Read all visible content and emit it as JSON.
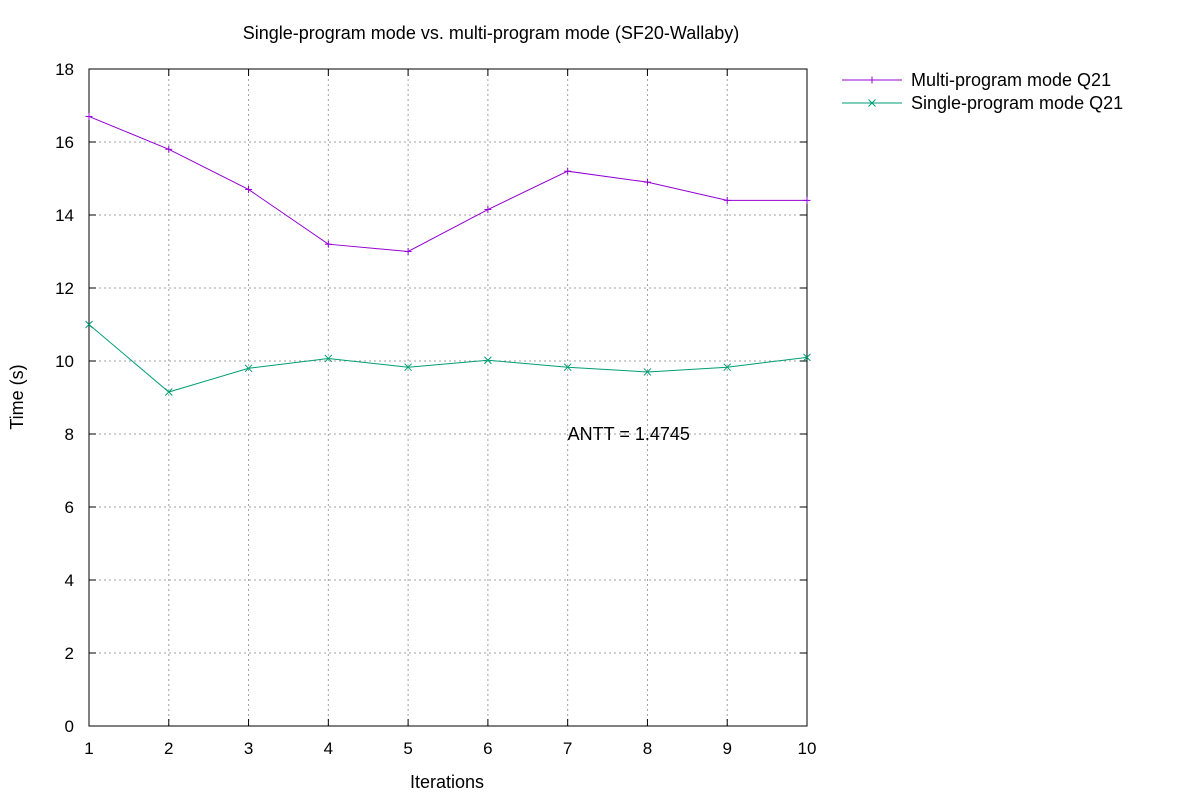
{
  "chart_data": {
    "type": "line",
    "title": "Single-program mode vs. multi-program mode (SF20-Wallaby)",
    "xlabel": "Iterations",
    "ylabel": "Time (s)",
    "xlim": [
      1,
      10
    ],
    "ylim": [
      0,
      18
    ],
    "x_ticks": [
      "1",
      "2",
      "3",
      "4",
      "5",
      "6",
      "7",
      "8",
      "9",
      "10"
    ],
    "y_ticks": [
      "0",
      "2",
      "4",
      "6",
      "8",
      "10",
      "12",
      "14",
      "16",
      "18"
    ],
    "grid": true,
    "legend_position": "outside-top-right",
    "x": [
      1,
      2,
      3,
      4,
      5,
      6,
      7,
      8,
      9,
      10
    ],
    "series": [
      {
        "name": "Multi-program mode Q21",
        "color": "#9400d3",
        "marker": "plus",
        "values": [
          16.7,
          15.8,
          14.7,
          13.2,
          13.0,
          14.15,
          15.2,
          14.9,
          14.4,
          14.4
        ]
      },
      {
        "name": "Single-program mode Q21",
        "color": "#009e73",
        "marker": "cross",
        "values": [
          11.0,
          9.15,
          9.8,
          10.07,
          9.83,
          10.02,
          9.83,
          9.7,
          9.83,
          10.1
        ]
      }
    ],
    "annotations": [
      {
        "text": "ANTT = 1.4745",
        "x": 7,
        "y": 8
      }
    ]
  }
}
